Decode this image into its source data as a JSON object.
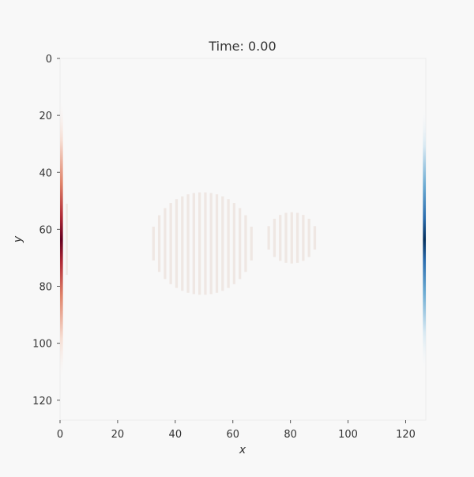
{
  "chart_data": {
    "type": "heatmap",
    "title": "Time: 0.00",
    "xlabel": "x",
    "ylabel": "y",
    "xlim": [
      0,
      127
    ],
    "ylim": [
      0,
      127
    ],
    "y_inverted": true,
    "x_ticks": [
      0,
      20,
      40,
      60,
      80,
      100,
      120
    ],
    "y_ticks": [
      0,
      20,
      40,
      60,
      80,
      100,
      120
    ],
    "grid": false,
    "colormap": "RdBu diverging (red = positive, blue = negative)",
    "background_value": 0,
    "features": [
      {
        "name": "left-boundary-source",
        "kind": "gradient-column",
        "x": 0,
        "width": 1,
        "sign": "positive",
        "y_extent": [
          14,
          113
        ],
        "peak_y": 64,
        "peak_intensity": 1.0
      },
      {
        "name": "left-boundary-faint-column",
        "kind": "stripe",
        "x": 2,
        "width": 0.7,
        "y_extent": [
          51,
          76
        ],
        "intensity": 0.08
      },
      {
        "name": "right-boundary-sink",
        "kind": "gradient-column",
        "x": 126,
        "width": 1,
        "sign": "negative",
        "y_extent": [
          17,
          110
        ],
        "peak_y": 64,
        "peak_intensity": 1.0
      },
      {
        "name": "large-circular-obstacle",
        "kind": "striped-disk",
        "cx": 49,
        "cy": 65,
        "r": 18,
        "stripe_spacing": 2,
        "stripe_width": 0.9,
        "intensity": 0.08
      },
      {
        "name": "small-circular-obstacle",
        "kind": "striped-disk",
        "cx": 80,
        "cy": 63,
        "r": 9,
        "stripe_spacing": 2,
        "stripe_width": 0.9,
        "intensity": 0.08
      }
    ]
  }
}
